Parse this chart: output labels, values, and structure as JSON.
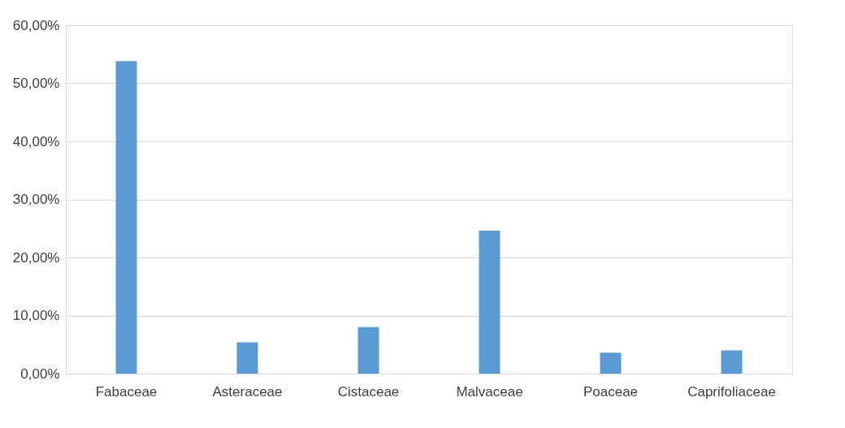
{
  "chart_data": {
    "type": "bar",
    "categories": [
      "Fabaceae",
      "Asteraceae",
      "Cistaceae",
      "Malvaceae",
      "Poaceae",
      "Caprifoliaceae"
    ],
    "values": [
      53.8,
      5.4,
      8.0,
      24.6,
      3.6,
      4.0
    ],
    "color": "#5b9bd5",
    "ylim": [
      0,
      60
    ],
    "yticks": [
      {
        "value": 0,
        "label": "0,00%"
      },
      {
        "value": 10,
        "label": "10,00%"
      },
      {
        "value": 20,
        "label": "20,00%"
      },
      {
        "value": 30,
        "label": "30,00%"
      },
      {
        "value": 40,
        "label": "40,00%"
      },
      {
        "value": 50,
        "label": "50,00%"
      },
      {
        "value": 60,
        "label": "60,00%"
      }
    ],
    "grid": "y"
  }
}
